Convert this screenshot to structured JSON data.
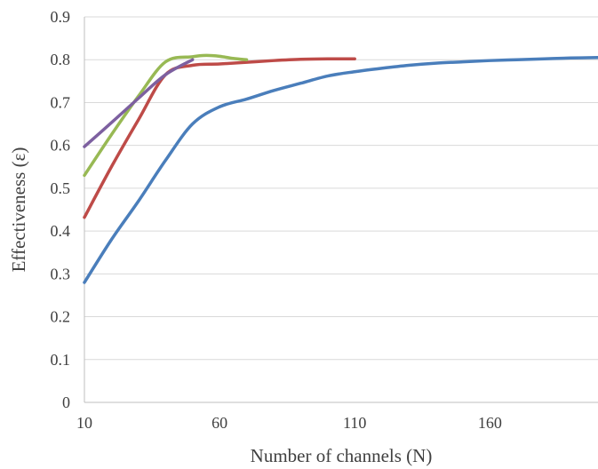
{
  "chart_data": {
    "type": "line",
    "title": "",
    "xlabel": "Number of channels (N)",
    "ylabel": "Effectiveness (ε)",
    "xlim": [
      10,
      200
    ],
    "ylim": [
      0,
      0.9
    ],
    "xticks": [
      10,
      60,
      110,
      160
    ],
    "yticks": [
      0,
      0.1,
      0.2,
      0.3,
      0.4,
      0.5,
      0.6,
      0.7,
      0.8,
      0.9
    ],
    "xtick_labels": [
      "10",
      "60",
      "110",
      "160"
    ],
    "ytick_labels": [
      "0",
      "0.1",
      "0.2",
      "0.3",
      "0.4",
      "0.5",
      "0.6",
      "0.7",
      "0.8",
      "0.9"
    ],
    "grid": "horizontal",
    "legend": "none",
    "series": [
      {
        "color": "#4a7ebb",
        "x": [
          10,
          20,
          30,
          40,
          50,
          60,
          70,
          80,
          90,
          100,
          110,
          120,
          130,
          140,
          150,
          160,
          170,
          180,
          190,
          200
        ],
        "y": [
          0.28,
          0.38,
          0.47,
          0.565,
          0.65,
          0.69,
          0.708,
          0.728,
          0.745,
          0.762,
          0.772,
          0.78,
          0.787,
          0.792,
          0.795,
          0.798,
          0.8,
          0.802,
          0.804,
          0.805
        ]
      },
      {
        "color": "#be4b48",
        "x": [
          10,
          20,
          30,
          40,
          50,
          60,
          70,
          80,
          90,
          100,
          110
        ],
        "y": [
          0.432,
          0.55,
          0.66,
          0.765,
          0.787,
          0.79,
          0.794,
          0.798,
          0.801,
          0.802,
          0.802
        ]
      },
      {
        "color": "#98b954",
        "x": [
          10,
          20,
          30,
          40,
          50,
          55,
          60,
          65,
          70
        ],
        "y": [
          0.53,
          0.625,
          0.715,
          0.795,
          0.807,
          0.81,
          0.808,
          0.803,
          0.8
        ]
      },
      {
        "color": "#7d60a0",
        "x": [
          10,
          20,
          30,
          40,
          50
        ],
        "y": [
          0.597,
          0.653,
          0.71,
          0.765,
          0.8
        ]
      }
    ]
  }
}
